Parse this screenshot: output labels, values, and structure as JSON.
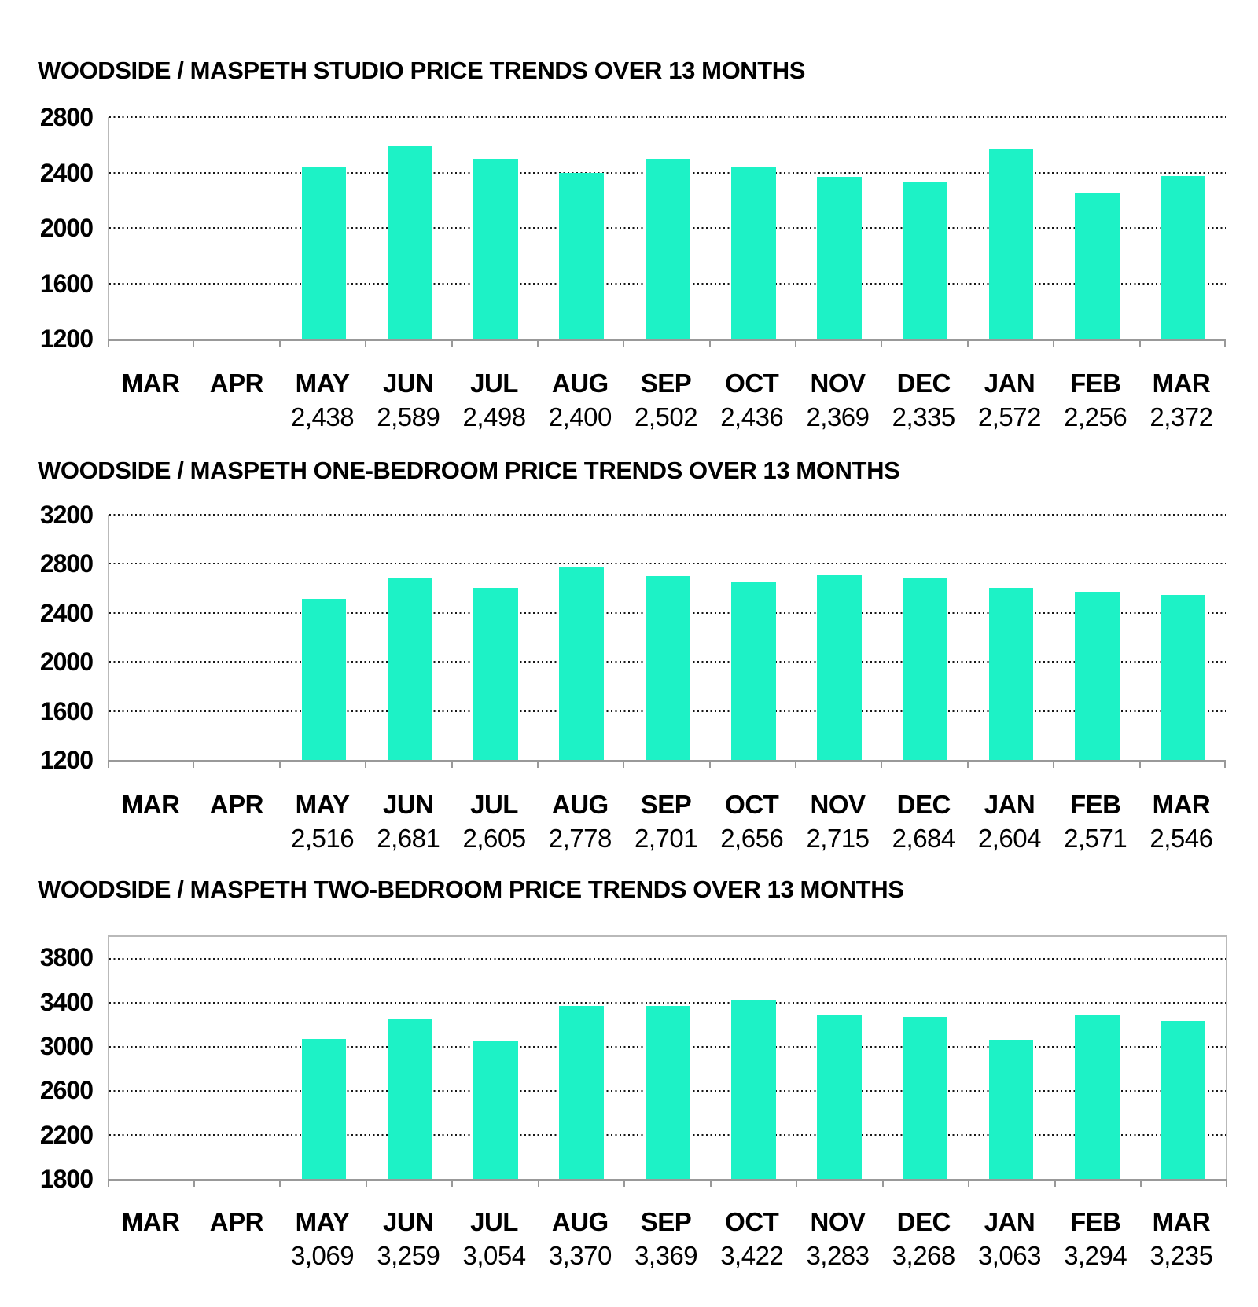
{
  "colors": {
    "bar": "#1DF2C6",
    "gridline": "#161616",
    "axis": "#999999",
    "plot_border": "#b9b9b9",
    "text": "#000000",
    "background": "#ffffff"
  },
  "chart_data": [
    {
      "type": "bar",
      "title": "WOODSIDE / MASPETH STUDIO PRICE TRENDS OVER 13 MONTHS",
      "categories": [
        "MAR",
        "APR",
        "MAY",
        "JUN",
        "JUL",
        "AUG",
        "SEP",
        "OCT",
        "NOV",
        "DEC",
        "JAN",
        "FEB",
        "MAR"
      ],
      "values": [
        null,
        null,
        2438,
        2589,
        2498,
        2400,
        2502,
        2436,
        2369,
        2335,
        2572,
        2256,
        2372
      ],
      "value_labels": [
        "",
        "",
        "2,438",
        "2,589",
        "2,498",
        "2,400",
        "2,502",
        "2,436",
        "2,369",
        "2,335",
        "2,572",
        "2,256",
        "2,372"
      ],
      "ylim": [
        1200,
        2800
      ],
      "yticks": [
        1200,
        1600,
        2000,
        2400,
        2800
      ],
      "ytick_labels": [
        "1200",
        "1600",
        "2000",
        "2400",
        "2800"
      ],
      "xlabel": "",
      "ylabel": "",
      "grid": "horizontal-dotted",
      "legend": "none",
      "boxed": false
    },
    {
      "type": "bar",
      "title": "WOODSIDE / MASPETH ONE-BEDROOM PRICE TRENDS OVER 13 MONTHS",
      "categories": [
        "MAR",
        "APR",
        "MAY",
        "JUN",
        "JUL",
        "AUG",
        "SEP",
        "OCT",
        "NOV",
        "DEC",
        "JAN",
        "FEB",
        "MAR"
      ],
      "values": [
        null,
        null,
        2516,
        2681,
        2605,
        2778,
        2701,
        2656,
        2715,
        2684,
        2604,
        2571,
        2546
      ],
      "value_labels": [
        "",
        "",
        "2,516",
        "2,681",
        "2,605",
        "2,778",
        "2,701",
        "2,656",
        "2,715",
        "2,684",
        "2,604",
        "2,571",
        "2,546"
      ],
      "ylim": [
        1200,
        3200
      ],
      "yticks": [
        1200,
        1600,
        2000,
        2400,
        2800,
        3200
      ],
      "ytick_labels": [
        "1200",
        "1600",
        "2000",
        "2400",
        "2800",
        "3200"
      ],
      "xlabel": "",
      "ylabel": "",
      "grid": "horizontal-dotted",
      "legend": "none",
      "boxed": false
    },
    {
      "type": "bar",
      "title": "WOODSIDE / MASPETH TWO-BEDROOM PRICE TRENDS OVER 13 MONTHS",
      "categories": [
        "MAR",
        "APR",
        "MAY",
        "JUN",
        "JUL",
        "AUG",
        "SEP",
        "OCT",
        "NOV",
        "DEC",
        "JAN",
        "FEB",
        "MAR"
      ],
      "values": [
        null,
        null,
        3069,
        3259,
        3054,
        3370,
        3369,
        3422,
        3283,
        3268,
        3063,
        3294,
        3235
      ],
      "value_labels": [
        "",
        "",
        "3,069",
        "3,259",
        "3,054",
        "3,370",
        "3,369",
        "3,422",
        "3,283",
        "3,268",
        "3,063",
        "3,294",
        "3,235"
      ],
      "ylim": [
        1800,
        4000
      ],
      "yticks": [
        1800,
        2200,
        2600,
        3000,
        3400,
        3800
      ],
      "ytick_labels": [
        "1800",
        "2200",
        "2600",
        "3000",
        "3400",
        "3800"
      ],
      "xlabel": "",
      "ylabel": "",
      "grid": "horizontal-dotted",
      "legend": "none",
      "boxed": true
    }
  ]
}
